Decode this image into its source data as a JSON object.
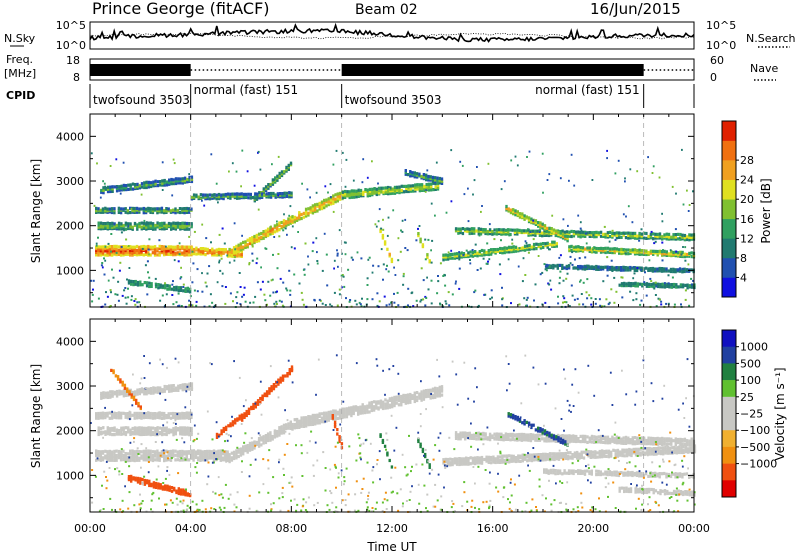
{
  "header": {
    "station": "Prince George (fitACF)",
    "beam": "Beam 02",
    "date": "16/Jun/2015"
  },
  "noise_panel": {
    "left_label": "N.Sky",
    "right_label": "N.Search",
    "left_ticks": [
      "10^5",
      "10^0"
    ],
    "right_ticks": [
      "10^5",
      "10^0"
    ]
  },
  "freq_panel": {
    "left_label_1": "Freq.",
    "left_label_2": "[MHz]",
    "left_ticks": [
      "18",
      "8"
    ],
    "right_label": "Nave",
    "right_ticks": [
      "60",
      "0"
    ]
  },
  "cpid_panel": {
    "label": "CPID",
    "segments": [
      {
        "name": "twofsound 3503",
        "start_hour": 0.0,
        "end_hour": 4.0,
        "filled": true
      },
      {
        "name": "normal (fast) 151",
        "start_hour": 4.0,
        "end_hour": 10.0,
        "filled": false
      },
      {
        "name": "twofsound 3503",
        "start_hour": 10.0,
        "end_hour": 22.0,
        "filled": true
      },
      {
        "name": "normal (fast) 151",
        "start_hour": 22.0,
        "end_hour": 24.0,
        "filled": false
      }
    ]
  },
  "power_panel": {
    "ylabel": "Slant Range [km]",
    "yticks": [
      "1000",
      "2000",
      "3000",
      "4000"
    ],
    "colorbar_label": "Power [dB]",
    "colorbar_ticks": [
      "4",
      "8",
      "12",
      "16",
      "20",
      "24",
      "28"
    ]
  },
  "velocity_panel": {
    "ylabel": "Slant Range [km]",
    "yticks": [
      "1000",
      "2000",
      "3000",
      "4000"
    ],
    "colorbar_label": "Velocity  [m s⁻¹]",
    "colorbar_ticks": [
      "1000",
      "500",
      "100",
      "25",
      "−25",
      "−100",
      "−500",
      "−1000"
    ]
  },
  "x_axis": {
    "xlabel": "Time UT",
    "tick_labels": [
      "00:00",
      "04:00",
      "08:00",
      "12:00",
      "16:00",
      "20:00",
      "00:00"
    ]
  },
  "chart_data": [
    {
      "type": "heatmap",
      "title": "",
      "xlabel": "Time UT",
      "ylabel": "Slant Range [km]",
      "xlim": [
        0,
        24
      ],
      "ylim": [
        180,
        4500
      ],
      "colorbar": {
        "label": "Power [dB]",
        "range": [
          0,
          30
        ],
        "colors": [
          "#1010e0",
          "#2050b0",
          "#207a70",
          "#30a060",
          "#80c030",
          "#e0e020",
          "#f0a020",
          "#f07010",
          "#e02000"
        ]
      },
      "features": [
        {
          "from_hour": 0.2,
          "to_hour": 4.0,
          "start_km": 1450,
          "end_km": 1450,
          "thickness_km": 220,
          "power_db": 27
        },
        {
          "from_hour": 0.3,
          "to_hour": 4.0,
          "start_km": 2000,
          "end_km": 2000,
          "thickness_km": 160,
          "power_db": 16
        },
        {
          "from_hour": 0.2,
          "to_hour": 4.0,
          "start_km": 2350,
          "end_km": 2350,
          "thickness_km": 120,
          "power_db": 14
        },
        {
          "from_hour": 0.4,
          "to_hour": 4.0,
          "start_km": 2800,
          "end_km": 3050,
          "thickness_km": 140,
          "power_db": 13
        },
        {
          "from_hour": 1.5,
          "to_hour": 4.0,
          "start_km": 750,
          "end_km": 560,
          "thickness_km": 110,
          "power_db": 15
        },
        {
          "from_hour": 4.0,
          "to_hour": 6.0,
          "start_km": 1450,
          "end_km": 1380,
          "thickness_km": 160,
          "power_db": 26
        },
        {
          "from_hour": 5.5,
          "to_hour": 8.0,
          "start_km": 1400,
          "end_km": 2150,
          "thickness_km": 180,
          "power_db": 24
        },
        {
          "from_hour": 6.5,
          "to_hour": 8.0,
          "start_km": 2600,
          "end_km": 3400,
          "thickness_km": 130,
          "power_db": 15
        },
        {
          "from_hour": 4.0,
          "to_hour": 8.0,
          "start_km": 2650,
          "end_km": 2700,
          "thickness_km": 120,
          "power_db": 13
        },
        {
          "from_hour": 8.0,
          "to_hour": 10.0,
          "start_km": 2150,
          "end_km": 2700,
          "thickness_km": 190,
          "power_db": 23
        },
        {
          "from_hour": 10.0,
          "to_hour": 13.8,
          "start_km": 2700,
          "end_km": 2900,
          "thickness_km": 170,
          "power_db": 18
        },
        {
          "from_hour": 12.5,
          "to_hour": 14.0,
          "start_km": 3200,
          "end_km": 3000,
          "thickness_km": 130,
          "power_db": 13
        },
        {
          "from_hour": 11.5,
          "to_hour": 12.0,
          "start_km": 1900,
          "end_km": 1150,
          "thickness_km": 90,
          "power_db": 24
        },
        {
          "from_hour": 13.0,
          "to_hour": 13.5,
          "start_km": 1800,
          "end_km": 1150,
          "thickness_km": 90,
          "power_db": 22
        },
        {
          "from_hour": 14.0,
          "to_hour": 18.5,
          "start_km": 1300,
          "end_km": 1600,
          "thickness_km": 130,
          "power_db": 18
        },
        {
          "from_hour": 14.5,
          "to_hour": 24.0,
          "start_km": 1900,
          "end_km": 1750,
          "thickness_km": 140,
          "power_db": 17
        },
        {
          "from_hour": 16.5,
          "to_hour": 19.0,
          "start_km": 2400,
          "end_km": 1700,
          "thickness_km": 120,
          "power_db": 20
        },
        {
          "from_hour": 19.0,
          "to_hour": 24.0,
          "start_km": 1500,
          "end_km": 1350,
          "thickness_km": 120,
          "power_db": 19
        },
        {
          "from_hour": 18.0,
          "to_hour": 24.0,
          "start_km": 1100,
          "end_km": 1000,
          "thickness_km": 90,
          "power_db": 13
        },
        {
          "from_hour": 21.0,
          "to_hour": 24.0,
          "start_km": 700,
          "end_km": 650,
          "thickness_km": 90,
          "power_db": 14
        }
      ]
    },
    {
      "type": "heatmap",
      "title": "",
      "xlabel": "Time UT",
      "ylabel": "Slant Range [km]",
      "xlim": [
        0,
        24
      ],
      "ylim": [
        180,
        4500
      ],
      "colorbar": {
        "label": "Velocity  [m s⁻¹]",
        "range": [
          -1000,
          1000
        ],
        "colors": [
          "#e00000",
          "#f05010",
          "#f09010",
          "#f0b030",
          "#c8c8c4",
          "#c8c8c4",
          "#60c030",
          "#208040",
          "#2040a0",
          "#1010c0"
        ]
      },
      "ground_scatter_color": "#c8c8c4",
      "features": [
        {
          "from_hour": 0.2,
          "to_hour": 5.5,
          "start_km": 1450,
          "end_km": 1450,
          "thickness_km": 240,
          "velocity": 0
        },
        {
          "from_hour": 0.3,
          "to_hour": 4.0,
          "start_km": 2000,
          "end_km": 2000,
          "thickness_km": 180,
          "velocity": 0
        },
        {
          "from_hour": 0.2,
          "to_hour": 4.0,
          "start_km": 2350,
          "end_km": 2350,
          "thickness_km": 150,
          "velocity": 0
        },
        {
          "from_hour": 0.4,
          "to_hour": 4.0,
          "start_km": 2800,
          "end_km": 3000,
          "thickness_km": 150,
          "velocity": 0
        },
        {
          "from_hour": 1.5,
          "to_hour": 4.0,
          "start_km": 950,
          "end_km": 580,
          "thickness_km": 130,
          "velocity": -150
        },
        {
          "from_hour": 0.8,
          "to_hour": 2.0,
          "start_km": 3400,
          "end_km": 2500,
          "thickness_km": 100,
          "velocity": -100
        },
        {
          "from_hour": 5.5,
          "to_hour": 8.0,
          "start_km": 1400,
          "end_km": 2150,
          "thickness_km": 200,
          "velocity": 0
        },
        {
          "from_hour": 6.0,
          "to_hour": 8.0,
          "start_km": 2300,
          "end_km": 3400,
          "thickness_km": 130,
          "velocity": -150
        },
        {
          "from_hour": 5.0,
          "to_hour": 6.0,
          "start_km": 1900,
          "end_km": 2350,
          "thickness_km": 110,
          "velocity": -200
        },
        {
          "from_hour": 8.0,
          "to_hour": 14.0,
          "start_km": 2150,
          "end_km": 2900,
          "thickness_km": 230,
          "velocity": 0
        },
        {
          "from_hour": 9.6,
          "to_hour": 10.0,
          "start_km": 2300,
          "end_km": 1600,
          "thickness_km": 140,
          "velocity": -150
        },
        {
          "from_hour": 11.5,
          "to_hour": 12.0,
          "start_km": 1900,
          "end_km": 1150,
          "thickness_km": 90,
          "velocity": 200
        },
        {
          "from_hour": 13.0,
          "to_hour": 13.5,
          "start_km": 1800,
          "end_km": 1150,
          "thickness_km": 90,
          "velocity": 180
        },
        {
          "from_hour": 14.0,
          "to_hour": 24.0,
          "start_km": 1300,
          "end_km": 1600,
          "thickness_km": 160,
          "velocity": 0
        },
        {
          "from_hour": 14.5,
          "to_hour": 24.0,
          "start_km": 1900,
          "end_km": 1750,
          "thickness_km": 160,
          "velocity": 0
        },
        {
          "from_hour": 16.5,
          "to_hour": 19.0,
          "start_km": 2400,
          "end_km": 1700,
          "thickness_km": 110,
          "velocity": 600
        },
        {
          "from_hour": 18.0,
          "to_hour": 24.0,
          "start_km": 1100,
          "end_km": 1000,
          "thickness_km": 110,
          "velocity": 0
        },
        {
          "from_hour": 21.0,
          "to_hour": 24.0,
          "start_km": 700,
          "end_km": 600,
          "thickness_km": 110,
          "velocity": 0
        }
      ]
    }
  ]
}
